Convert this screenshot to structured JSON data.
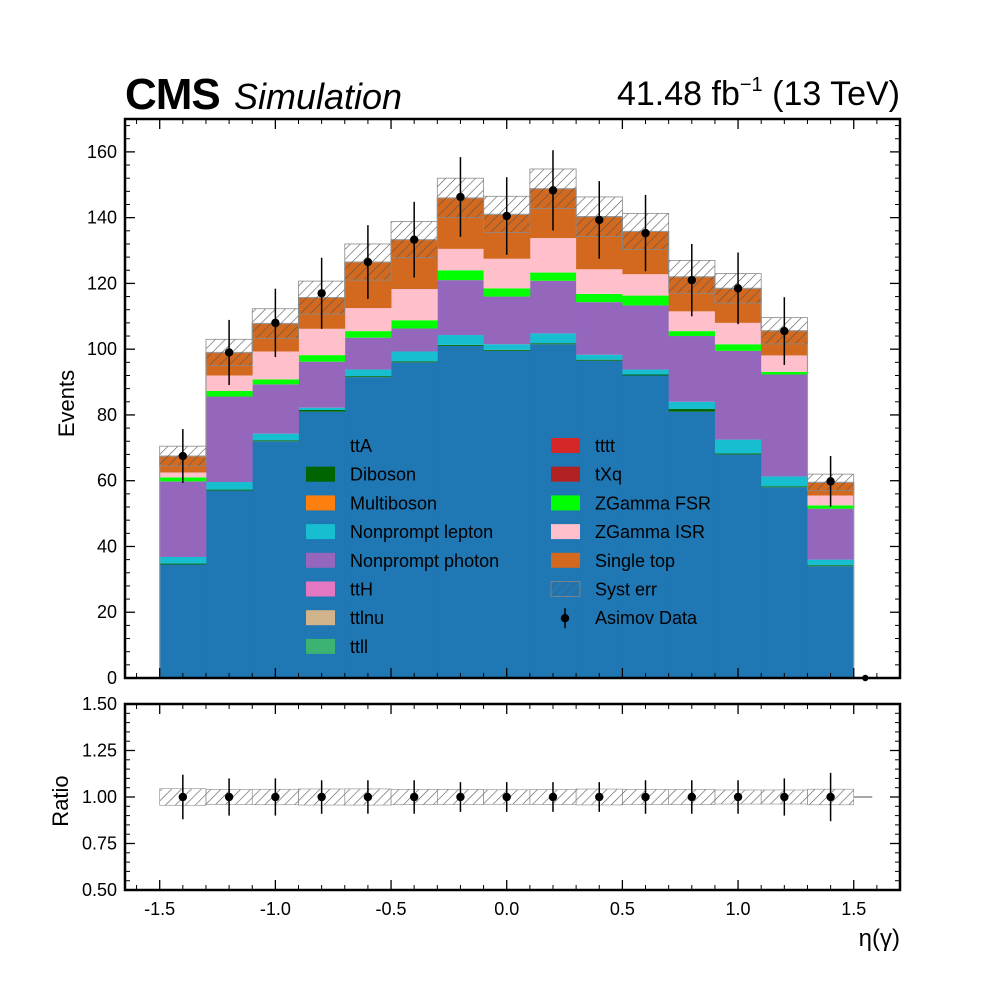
{
  "header": {
    "experiment": "CMS",
    "status": "Simulation",
    "lumi_value": "41.48 fb",
    "lumi_exponent": "−1",
    "energy": " (13 TeV)"
  },
  "chart_data": {
    "type": "stacked histogram with ratio panel",
    "xlabel": "η(γ)",
    "ylabel": "Events",
    "ratio_ylabel": "Ratio",
    "xlim": [
      -1.65,
      1.7
    ],
    "ylim": [
      0,
      170
    ],
    "ratio_ylim": [
      0.5,
      1.5
    ],
    "x_ticks": [
      -1.5,
      -1.0,
      -0.5,
      0.0,
      0.5,
      1.0,
      1.5
    ],
    "x_tick_labels": [
      "-1.5",
      "-1.0",
      "-0.5",
      "0.0",
      "0.5",
      "1.0",
      "1.5"
    ],
    "y_ticks": [
      0,
      20,
      40,
      60,
      80,
      100,
      120,
      140,
      160
    ],
    "y_tick_labels": [
      "0",
      "20",
      "40",
      "60",
      "80",
      "100",
      "120",
      "140",
      "160"
    ],
    "ratio_ticks": [
      0.5,
      0.75,
      1.0,
      1.25,
      1.5
    ],
    "ratio_tick_labels": [
      "0.50",
      "0.75",
      "1.00",
      "1.25",
      "1.50"
    ],
    "bin_edges": [
      -1.5,
      -1.3,
      -1.1,
      -0.9,
      -0.7,
      -0.5,
      -0.3,
      -0.1,
      0.1,
      0.3,
      0.5,
      0.7,
      0.9,
      1.1,
      1.3,
      1.5
    ],
    "bin_centers": [
      -1.4,
      -1.2,
      -1.0,
      -0.8,
      -0.6,
      -0.4,
      -0.2,
      0.0,
      0.2,
      0.4,
      0.6,
      0.8,
      1.0,
      1.2,
      1.4
    ],
    "legend_position": "center",
    "series": [
      {
        "name": "ttA",
        "color": "#1f77b4",
        "values": [
          34.5,
          57,
          72,
          81,
          91.5,
          96,
          101,
          99.5,
          101.5,
          96.5,
          92,
          81,
          68,
          58,
          34
        ]
      },
      {
        "name": "Diboson",
        "color": "#006400",
        "values": [
          0.3,
          0.3,
          0.3,
          0.5,
          0.3,
          0.3,
          0.3,
          0.3,
          0.3,
          0.3,
          0.3,
          0.8,
          0.3,
          0.3,
          0.3
        ]
      },
      {
        "name": "Multiboson",
        "color": "#ff7f0e",
        "values": [
          0,
          0,
          0,
          0,
          0,
          0,
          0,
          0,
          0,
          0,
          0,
          0,
          0,
          0,
          0
        ]
      },
      {
        "name": "Nonprompt lepton",
        "color": "#17becf",
        "values": [
          2,
          2.3,
          2,
          0.7,
          2,
          3,
          3,
          1.7,
          3,
          1.5,
          1.5,
          2.2,
          4.2,
          3,
          1.7
        ]
      },
      {
        "name": "Nonprompt photon",
        "color": "#9467bd",
        "values": [
          23,
          26,
          15,
          14,
          9.7,
          7,
          16.7,
          14.5,
          16,
          16,
          19.5,
          20,
          27,
          31,
          15.5
        ]
      },
      {
        "name": "ttH",
        "color": "#e377c2",
        "values": [
          0,
          0,
          0,
          0,
          0,
          0,
          0,
          0,
          0,
          0,
          0,
          0,
          0,
          0,
          0
        ]
      },
      {
        "name": "ttlnu",
        "color": "#d2b48c",
        "values": [
          0,
          0,
          0,
          0,
          0,
          0,
          0,
          0,
          0,
          0,
          0,
          0,
          0,
          0,
          0
        ]
      },
      {
        "name": "ttll",
        "color": "#3cb371",
        "values": [
          0,
          0,
          0,
          0,
          0,
          0,
          0,
          0,
          0,
          0,
          0,
          0,
          0,
          0,
          0
        ]
      },
      {
        "name": "tttt",
        "color": "#d62728",
        "values": [
          0,
          0,
          0,
          0,
          0,
          0,
          0,
          0,
          0,
          0,
          0,
          0,
          0,
          0,
          0
        ]
      },
      {
        "name": "tXq",
        "color": "#b22222",
        "values": [
          0,
          0,
          0,
          0,
          0,
          0,
          0,
          0,
          0,
          0,
          0,
          0,
          0,
          0,
          0
        ]
      },
      {
        "name": "ZGamma FSR",
        "color": "#00ff00",
        "values": [
          1.2,
          1.7,
          1.5,
          2,
          2,
          2.5,
          3,
          2.5,
          2.5,
          2.5,
          3,
          1.5,
          2,
          0.8,
          1
        ]
      },
      {
        "name": "ZGamma ISR",
        "color": "#ffc0cb",
        "values": [
          1.5,
          4.7,
          8.5,
          8,
          7,
          9.5,
          6.5,
          9,
          10.5,
          7.5,
          6.5,
          6,
          6.5,
          5,
          3
        ]
      },
      {
        "name": "Single top",
        "color": "#d2691e",
        "values": [
          5,
          7,
          8.5,
          9.5,
          14,
          15,
          15.5,
          13.5,
          15,
          16,
          13,
          10.5,
          10.5,
          7.5,
          4
        ]
      }
    ],
    "syst_err": [
      3,
      4,
      4.5,
      5,
      5.5,
      5.5,
      6,
      5.5,
      6,
      6,
      5.5,
      5,
      4.5,
      4,
      2.5
    ],
    "asimov_data": {
      "name": "Asimov Data",
      "values": [
        67.5,
        99,
        108,
        117,
        126.5,
        133.3,
        146.3,
        140.5,
        148.3,
        139.3,
        135.3,
        121,
        118.5,
        105.5,
        59.8
      ],
      "errors": [
        8.2,
        9.9,
        10.4,
        10.8,
        11.2,
        11.5,
        12.1,
        11.8,
        12.2,
        11.8,
        11.6,
        11,
        10.9,
        10.3,
        7.7
      ]
    },
    "syst_err_label": "Syst err",
    "ratio_values": [
      1,
      1,
      1,
      1,
      1,
      1,
      1,
      1,
      1,
      1,
      1,
      1,
      1,
      1,
      1
    ],
    "ratio_errors": [
      0.12,
      0.1,
      0.1,
      0.09,
      0.09,
      0.09,
      0.08,
      0.08,
      0.08,
      0.08,
      0.09,
      0.09,
      0.09,
      0.1,
      0.13
    ]
  }
}
